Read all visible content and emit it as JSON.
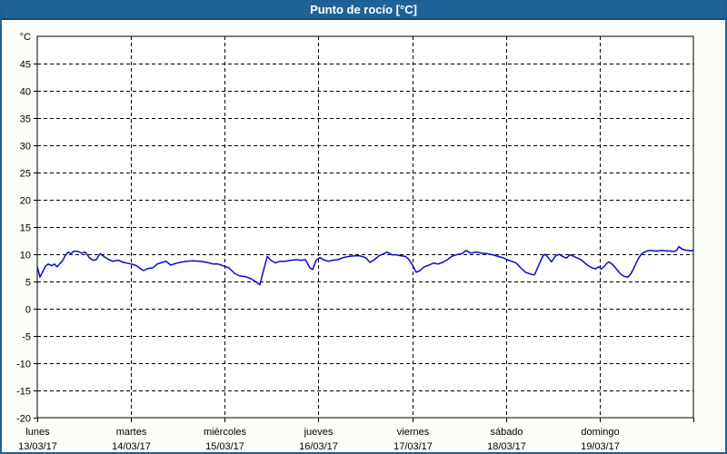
{
  "title": "Punto de rocío [°C]",
  "colors": {
    "titlebar_bg": "#1e6398",
    "titlebar_edge": "#13476f",
    "window_border": "#1d5f94",
    "page_bg": "#fbfdf8",
    "plot_bg": "#ffffff",
    "grid": "#000000",
    "series_line": "#0a0ac8",
    "label_text": "#000000",
    "title_text": "#ffffff"
  },
  "chart_data": {
    "type": "line",
    "title": "Punto de rocío [°C]",
    "ylabel_unit": "°C",
    "xlabel": "",
    "ylim": [
      -20,
      50
    ],
    "y_tick_step": 5,
    "y_ticks": [
      45,
      40,
      35,
      30,
      25,
      20,
      15,
      10,
      5,
      0,
      -5,
      -10,
      -15,
      -20
    ],
    "grid": "dashed",
    "legend_position": "none",
    "x_days": [
      {
        "name": "lunes",
        "date": "13/03/17"
      },
      {
        "name": "martes",
        "date": "14/03/17"
      },
      {
        "name": "miércoles",
        "date": "15/03/17"
      },
      {
        "name": "jueves",
        "date": "16/03/17"
      },
      {
        "name": "viernes",
        "date": "17/03/17"
      },
      {
        "name": "sábado",
        "date": "18/03/17"
      },
      {
        "name": "domingo",
        "date": "19/03/17"
      }
    ],
    "x_hours_total": 168,
    "series": [
      {
        "name": "Punto de rocío",
        "color": "#0a0ac8",
        "points": [
          [
            0,
            7.7
          ],
          [
            0.7,
            5.8
          ],
          [
            1.4,
            6.8
          ],
          [
            2.1,
            7.8
          ],
          [
            2.8,
            8.2
          ],
          [
            3.7,
            7.9
          ],
          [
            4.4,
            8.2
          ],
          [
            5.1,
            7.7
          ],
          [
            5.8,
            8.3
          ],
          [
            6.5,
            8.8
          ],
          [
            7.2,
            9.8
          ],
          [
            7.9,
            10.4
          ],
          [
            8.6,
            10.1
          ],
          [
            9.5,
            10.6
          ],
          [
            10.5,
            10.5
          ],
          [
            11.4,
            10.2
          ],
          [
            12.3,
            10.4
          ],
          [
            13.3,
            9.4
          ],
          [
            14.2,
            8.9
          ],
          [
            15.1,
            9.0
          ],
          [
            16.1,
            10.1
          ],
          [
            17.0,
            9.6
          ],
          [
            17.9,
            9.2
          ],
          [
            19.3,
            8.7
          ],
          [
            20.7,
            8.9
          ],
          [
            22.1,
            8.5
          ],
          [
            23.5,
            8.3
          ],
          [
            24.5,
            8.1
          ],
          [
            25.4,
            7.9
          ],
          [
            26.5,
            7.3
          ],
          [
            27.2,
            7.0
          ],
          [
            28.4,
            7.4
          ],
          [
            29.6,
            7.5
          ],
          [
            30.7,
            8.2
          ],
          [
            31.9,
            8.5
          ],
          [
            33.0,
            8.7
          ],
          [
            34.2,
            8.0
          ],
          [
            35.4,
            8.3
          ],
          [
            36.5,
            8.5
          ],
          [
            38.2,
            8.7
          ],
          [
            39.8,
            8.8
          ],
          [
            41.7,
            8.7
          ],
          [
            43.5,
            8.5
          ],
          [
            45.1,
            8.2
          ],
          [
            46.3,
            8.2
          ],
          [
            47.5,
            7.9
          ],
          [
            49.1,
            7.5
          ],
          [
            50.5,
            6.5
          ],
          [
            51.9,
            6.0
          ],
          [
            53.3,
            5.9
          ],
          [
            54.7,
            5.5
          ],
          [
            56.1,
            4.9
          ],
          [
            57.0,
            4.4
          ],
          [
            57.9,
            6.9
          ],
          [
            58.9,
            9.6
          ],
          [
            59.8,
            8.9
          ],
          [
            61.0,
            8.4
          ],
          [
            62.1,
            8.7
          ],
          [
            63.5,
            8.7
          ],
          [
            64.9,
            8.9
          ],
          [
            66.3,
            9.0
          ],
          [
            67.5,
            8.9
          ],
          [
            68.7,
            9.0
          ],
          [
            69.8,
            7.5
          ],
          [
            70.5,
            7.2
          ],
          [
            71.4,
            8.9
          ],
          [
            72.4,
            9.4
          ],
          [
            73.3,
            9.0
          ],
          [
            74.5,
            8.7
          ],
          [
            75.6,
            8.9
          ],
          [
            77.0,
            9.0
          ],
          [
            78.4,
            9.4
          ],
          [
            79.8,
            9.6
          ],
          [
            81.2,
            9.7
          ],
          [
            82.6,
            9.7
          ],
          [
            84.0,
            9.4
          ],
          [
            85.2,
            8.5
          ],
          [
            86.3,
            9.0
          ],
          [
            87.5,
            9.7
          ],
          [
            88.7,
            10.1
          ],
          [
            89.6,
            10.4
          ],
          [
            90.8,
            9.9
          ],
          [
            92.0,
            9.9
          ],
          [
            93.1,
            9.7
          ],
          [
            94.3,
            9.6
          ],
          [
            95.2,
            9.0
          ],
          [
            96.1,
            8.0
          ],
          [
            97.0,
            6.7
          ],
          [
            98.0,
            7.0
          ],
          [
            99.1,
            7.7
          ],
          [
            100.3,
            8.0
          ],
          [
            101.5,
            8.4
          ],
          [
            102.6,
            8.2
          ],
          [
            103.8,
            8.5
          ],
          [
            105.0,
            9.0
          ],
          [
            106.1,
            9.6
          ],
          [
            107.3,
            9.9
          ],
          [
            108.7,
            10.1
          ],
          [
            109.8,
            10.7
          ],
          [
            111.0,
            10.2
          ],
          [
            112.4,
            10.4
          ],
          [
            113.8,
            10.2
          ],
          [
            115.2,
            10.1
          ],
          [
            116.6,
            9.9
          ],
          [
            118.0,
            9.6
          ],
          [
            119.1,
            9.4
          ],
          [
            120.3,
            9.0
          ],
          [
            121.5,
            8.7
          ],
          [
            122.6,
            8.4
          ],
          [
            123.8,
            7.5
          ],
          [
            125.0,
            6.7
          ],
          [
            126.1,
            6.4
          ],
          [
            127.3,
            6.2
          ],
          [
            128.4,
            8.0
          ],
          [
            129.4,
            9.6
          ],
          [
            130.1,
            10.0
          ],
          [
            131.0,
            9.2
          ],
          [
            131.7,
            8.6
          ],
          [
            132.6,
            9.6
          ],
          [
            133.6,
            10.0
          ],
          [
            134.5,
            9.6
          ],
          [
            135.5,
            9.3
          ],
          [
            136.4,
            9.9
          ],
          [
            137.4,
            9.6
          ],
          [
            138.3,
            9.3
          ],
          [
            139.2,
            9.0
          ],
          [
            140.2,
            8.4
          ],
          [
            141.1,
            7.9
          ],
          [
            142.1,
            7.5
          ],
          [
            143.0,
            7.3
          ],
          [
            143.7,
            7.7
          ],
          [
            144.4,
            7.3
          ],
          [
            145.1,
            7.7
          ],
          [
            145.8,
            8.3
          ],
          [
            146.3,
            8.6
          ],
          [
            147.0,
            8.3
          ],
          [
            147.7,
            7.8
          ],
          [
            148.4,
            7.2
          ],
          [
            149.1,
            6.6
          ],
          [
            149.8,
            6.1
          ],
          [
            150.5,
            5.9
          ],
          [
            151.2,
            5.8
          ],
          [
            151.9,
            6.3
          ],
          [
            152.6,
            7.2
          ],
          [
            153.3,
            8.3
          ],
          [
            154.0,
            9.3
          ],
          [
            154.7,
            10.0
          ],
          [
            155.4,
            10.4
          ],
          [
            156.1,
            10.6
          ],
          [
            157.0,
            10.7
          ],
          [
            158.0,
            10.6
          ],
          [
            159.0,
            10.6
          ],
          [
            160.0,
            10.7
          ],
          [
            161.0,
            10.6
          ],
          [
            162.0,
            10.6
          ],
          [
            163.0,
            10.5
          ],
          [
            163.7,
            10.7
          ],
          [
            164.3,
            11.4
          ],
          [
            165.0,
            11.0
          ],
          [
            165.7,
            10.8
          ],
          [
            166.6,
            10.7
          ],
          [
            167.5,
            10.6
          ],
          [
            168,
            10.8
          ]
        ]
      }
    ]
  }
}
